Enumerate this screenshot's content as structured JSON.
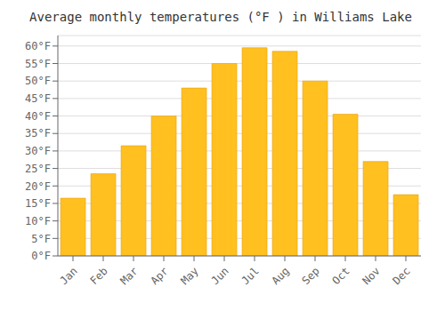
{
  "chart_data": {
    "type": "bar",
    "title": "Average monthly temperatures (°F ) in Williams Lake",
    "categories": [
      "Jan",
      "Feb",
      "Mar",
      "Apr",
      "May",
      "Jun",
      "Jul",
      "Aug",
      "Sep",
      "Oct",
      "Nov",
      "Dec"
    ],
    "values": [
      16.5,
      23.5,
      31.5,
      40.0,
      48.0,
      55.0,
      59.5,
      58.5,
      50.0,
      40.5,
      27.0,
      17.5
    ],
    "color": "#FFC020",
    "ylim": [
      0,
      63
    ],
    "yticks": [
      {
        "value": 0,
        "label": "0°F"
      },
      {
        "value": 5,
        "label": "5°F"
      },
      {
        "value": 10,
        "label": "10°F"
      },
      {
        "value": 15,
        "label": "15°F"
      },
      {
        "value": 20,
        "label": "20°F"
      },
      {
        "value": 25,
        "label": "25°F"
      },
      {
        "value": 30,
        "label": "30°F"
      },
      {
        "value": 35,
        "label": "35°F"
      },
      {
        "value": 40,
        "label": "40°F"
      },
      {
        "value": 45,
        "label": "45°F"
      },
      {
        "value": 50,
        "label": "50°F"
      },
      {
        "value": 55,
        "label": "55°F"
      },
      {
        "value": 60,
        "label": "60°F"
      }
    ],
    "grid": true
  }
}
